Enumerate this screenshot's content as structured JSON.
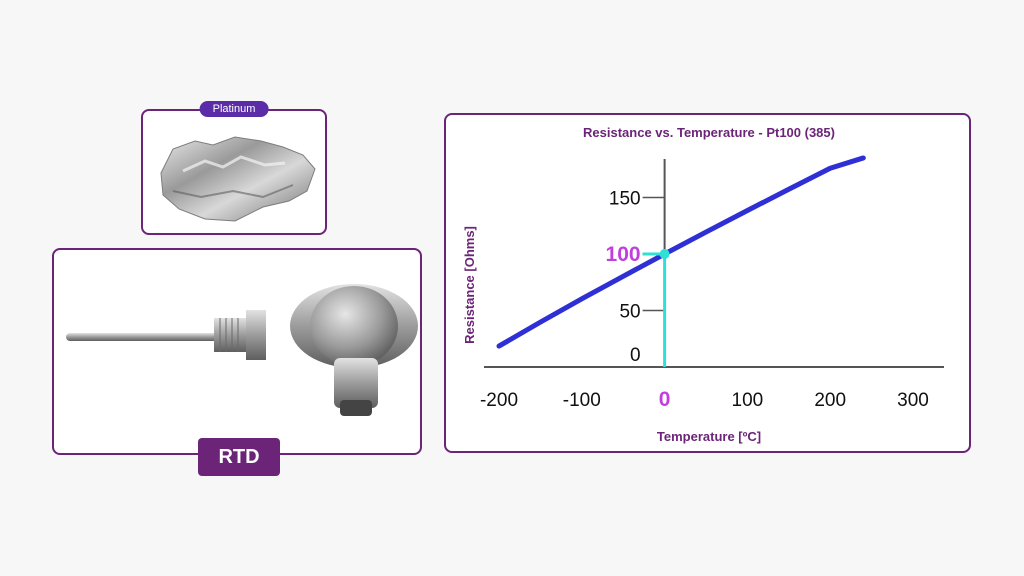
{
  "platinum": {
    "label": "Platinum"
  },
  "rtd": {
    "label": "RTD"
  },
  "chart_data": {
    "type": "line",
    "title": "Resistance  vs. Temperature - Pt100 (385)",
    "xlabel": "Temperature [ºC]",
    "ylabel": "Resistance [Ohms]",
    "xlim": [
      -200,
      300
    ],
    "ylim": [
      0,
      180
    ],
    "x_ticks": [
      "-200",
      "-100",
      "0",
      "100",
      "200",
      "300"
    ],
    "y_ticks": [
      "0",
      "50",
      "100",
      "150"
    ],
    "highlight": {
      "x": 0,
      "y": 100,
      "x_label": "0",
      "y_label": "100"
    },
    "series": [
      {
        "x": [
          -200,
          -150,
          -100,
          -50,
          0,
          50,
          100,
          150,
          200,
          240
        ],
        "y": [
          18.5,
          39.7,
          60.3,
          80.3,
          100,
          119.4,
          138.5,
          157.3,
          175.9,
          185
        ]
      }
    ],
    "colors": {
      "line": "#2f2fd6",
      "highlight": "#2ee0d6",
      "highlight_text": "#c13fdc",
      "title": "#6b2477"
    }
  }
}
